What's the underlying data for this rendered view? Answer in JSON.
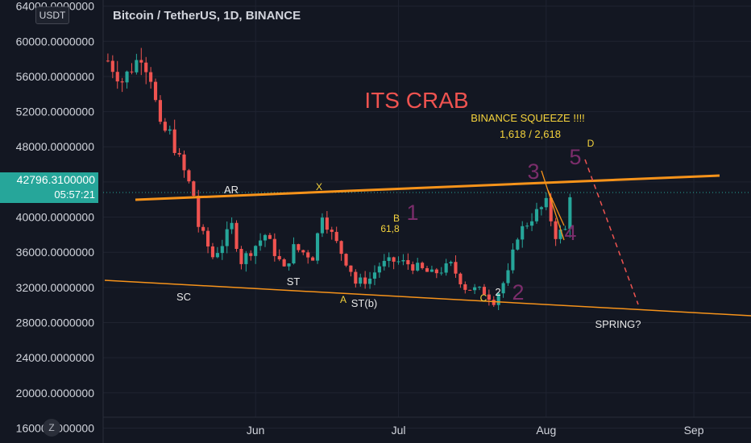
{
  "header": {
    "symbol_title": "Bitcoin / TetherUS, 1D, BINANCE",
    "currency_button": "USDT"
  },
  "last_price": {
    "value": "42796.3100000",
    "countdown": "05:57:21"
  },
  "z_button": "Z",
  "colors": {
    "background": "#131722",
    "up": "#26a69a",
    "down": "#ef5350",
    "trendline": "#f7931a",
    "wave": "#7b2d6b",
    "yellow_text": "#f5d33c",
    "white_text": "#e8e8e8",
    "axis_text": "#d1d4dc"
  },
  "chart_data": {
    "type": "candlestick",
    "title": "Bitcoin / TetherUS, 1D, BINANCE",
    "y_ticks": [
      "64000.0000000",
      "60000.0000000",
      "56000.0000000",
      "52000.0000000",
      "48000.0000000",
      "44000.0000000",
      "40000.0000000",
      "36000.0000000",
      "32000.0000000",
      "28000.0000000",
      "24000.0000000",
      "20000.0000000",
      "16000.0000000"
    ],
    "y_values": [
      64000,
      60000,
      56000,
      52000,
      48000,
      44000,
      40000,
      36000,
      32000,
      28000,
      24000,
      20000,
      16000
    ],
    "ylim": [
      14300,
      64700
    ],
    "x_ticks": [
      "Jun",
      "Jul",
      "Aug",
      "Sep"
    ],
    "x_tick_dates": [
      "2021-06-01",
      "2021-07-01",
      "2021-08-01",
      "2021-09-01"
    ],
    "x_range": [
      "2021-04-30",
      "2021-09-13"
    ],
    "grid": true,
    "close_path_dates": [
      "2021-05-01",
      "2021-05-04",
      "2021-05-08",
      "2021-05-10",
      "2021-05-12",
      "2021-05-14",
      "2021-05-16",
      "2021-05-19",
      "2021-05-20",
      "2021-05-23",
      "2021-05-25",
      "2021-05-27",
      "2021-05-29",
      "2021-06-03",
      "2021-06-07",
      "2021-06-09",
      "2021-06-13",
      "2021-06-15",
      "2021-06-17",
      "2021-06-21",
      "2021-06-22",
      "2021-06-25",
      "2021-06-27",
      "2021-06-30",
      "2021-07-03",
      "2021-07-08",
      "2021-07-12",
      "2021-07-15",
      "2021-07-19",
      "2021-07-21",
      "2021-07-24",
      "2021-07-26",
      "2021-07-29",
      "2021-08-01",
      "2021-08-03",
      "2021-08-05",
      "2021-08-06"
    ],
    "close_path_values": [
      57800,
      55500,
      58500,
      56000,
      50000,
      49500,
      46500,
      42500,
      39000,
      35500,
      37000,
      39000,
      35000,
      38000,
      34000,
      36500,
      35500,
      40500,
      38000,
      34000,
      32500,
      33000,
      34500,
      35000,
      34700,
      33500,
      34500,
      32000,
      31500,
      30500,
      33500,
      38000,
      40000,
      41500,
      38000,
      38500,
      42796
    ],
    "annotations": [
      {
        "text": "ITS CRAB"
      },
      {
        "text": "BINANCE SQUEEZE !!!!"
      },
      {
        "text": "1,618  /  2,618"
      },
      {
        "text": "D"
      },
      {
        "text": "5"
      },
      {
        "text": "3"
      },
      {
        "text": "4"
      },
      {
        "text": "1"
      },
      {
        "text": "2"
      },
      {
        "text": "AR"
      },
      {
        "text": "X"
      },
      {
        "text": "B"
      },
      {
        "text": "61,8"
      },
      {
        "text": "SC"
      },
      {
        "text": "ST"
      },
      {
        "text": "A"
      },
      {
        "text": "ST(b)"
      },
      {
        "text": "C"
      },
      {
        "text": "2"
      },
      {
        "text": "SPRING?"
      }
    ]
  }
}
